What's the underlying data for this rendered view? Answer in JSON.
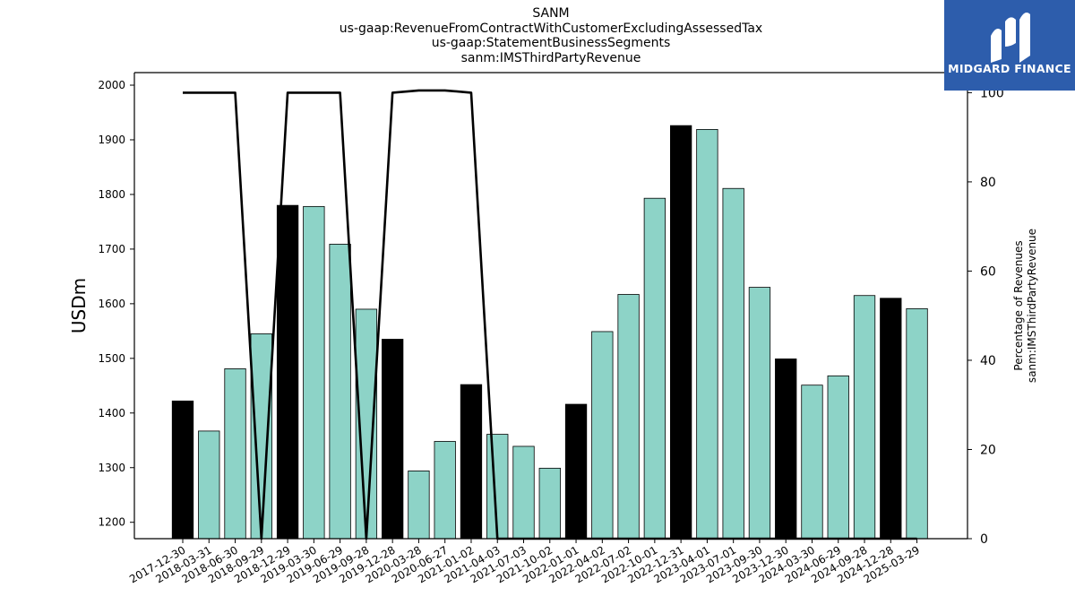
{
  "title_lines": [
    "SANM",
    "us-gaap:RevenueFromContractWithCustomerExcludingAssessedTax",
    "us-gaap:StatementBusinessSegments",
    "sanm:IMSThirdPartyRevenue"
  ],
  "logo": {
    "text": "MIDGARD FINANCE",
    "bg": "#2d5dac"
  },
  "chart_data": {
    "type": "bar",
    "categories": [
      "2017-12-30",
      "2018-03-31",
      "2018-06-30",
      "2018-09-29",
      "2018-12-29",
      "2019-03-30",
      "2019-06-29",
      "2019-09-28",
      "2019-12-28",
      "2020-03-28",
      "2020-06-27",
      "2021-01-02",
      "2021-04-03",
      "2021-07-03",
      "2021-10-02",
      "2022-01-01",
      "2022-04-02",
      "2022-07-02",
      "2022-10-01",
      "2022-12-31",
      "2023-04-01",
      "2023-07-01",
      "2023-09-30",
      "2023-12-30",
      "2024-03-30",
      "2024-06-29",
      "2024-09-28",
      "2024-12-28",
      "2025-03-29"
    ],
    "values": [
      1422,
      1367,
      1481,
      1545,
      1780,
      1778,
      1709,
      1590,
      1535,
      1294,
      1348,
      1452,
      1361,
      1339,
      1299,
      1416,
      1549,
      1617,
      1793,
      1926,
      1919,
      1811,
      1630,
      1499,
      1451,
      1468,
      1615,
      1610,
      1591
    ],
    "highlight": [
      true,
      false,
      false,
      false,
      true,
      false,
      false,
      false,
      true,
      false,
      false,
      true,
      false,
      false,
      false,
      true,
      false,
      false,
      false,
      true,
      false,
      false,
      false,
      true,
      false,
      false,
      false,
      true,
      false
    ],
    "percentages": [
      100,
      100,
      100,
      0,
      100,
      100,
      100,
      0,
      100,
      100.5,
      100.5,
      100,
      0,
      0,
      0,
      0,
      0,
      0,
      0,
      0,
      0,
      0,
      0,
      0,
      0,
      0,
      0,
      0,
      0
    ],
    "ylabel": "USDm",
    "ylabel_right": [
      "Percentage of Revenues",
      "sanm:IMSThirdPartyRevenue"
    ],
    "ylim": [
      1170,
      2023
    ],
    "ylim_right": [
      0,
      104.5
    ],
    "yticks": [
      1200,
      1300,
      1400,
      1500,
      1600,
      1700,
      1800,
      1900,
      2000
    ],
    "yticks_right": [
      0,
      20,
      40,
      60,
      80,
      100
    ],
    "colors": {
      "bar": "#8dd3c7",
      "highlight": "#000000",
      "line": "#000000"
    }
  }
}
